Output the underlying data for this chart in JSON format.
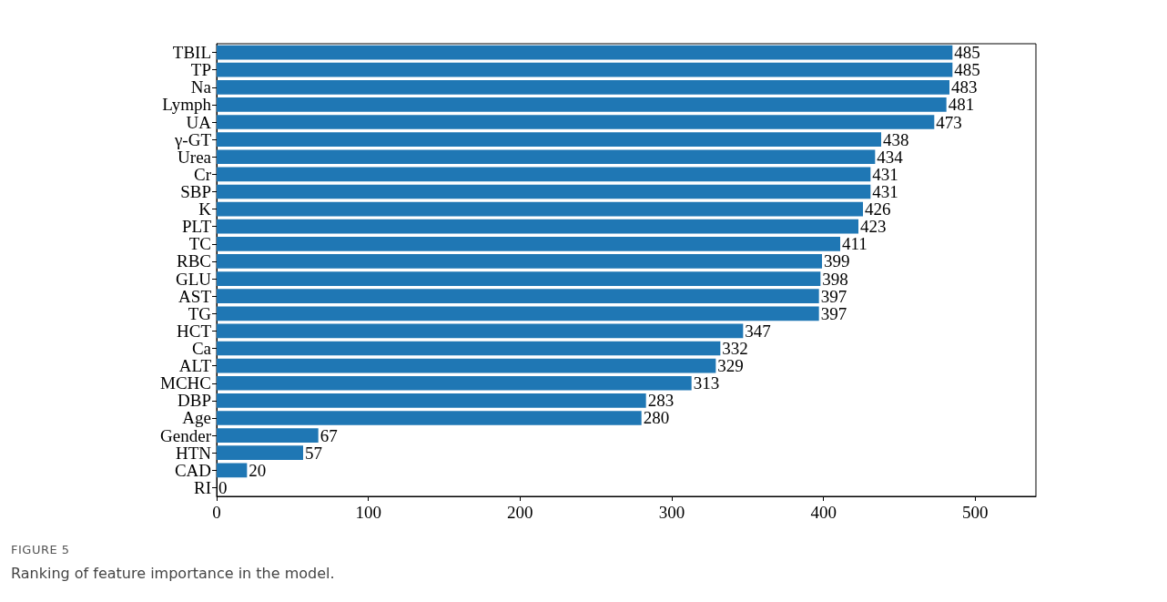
{
  "chart_data": {
    "type": "bar",
    "orientation": "horizontal",
    "categories": [
      "TBIL",
      "TP",
      "Na",
      "Lymph",
      "UA",
      "γ-GT",
      "Urea",
      "Cr",
      "SBP",
      "K",
      "PLT",
      "TC",
      "RBC",
      "GLU",
      "AST",
      "TG",
      "HCT",
      "Ca",
      "ALT",
      "MCHC",
      "DBP",
      "Age",
      "Gender",
      "HTN",
      "CAD",
      "RI"
    ],
    "values": [
      485,
      485,
      483,
      481,
      473,
      438,
      434,
      431,
      431,
      426,
      423,
      411,
      399,
      398,
      397,
      397,
      347,
      332,
      329,
      313,
      283,
      280,
      67,
      57,
      20,
      0
    ],
    "color": "#1f77b4",
    "xlim": [
      0,
      540
    ],
    "xticks": [
      0,
      100,
      200,
      300,
      400,
      500
    ],
    "data_labels": true,
    "grid": false,
    "annotations": [
      "FIGURE 5",
      "Ranking of feature importance in the model."
    ]
  }
}
